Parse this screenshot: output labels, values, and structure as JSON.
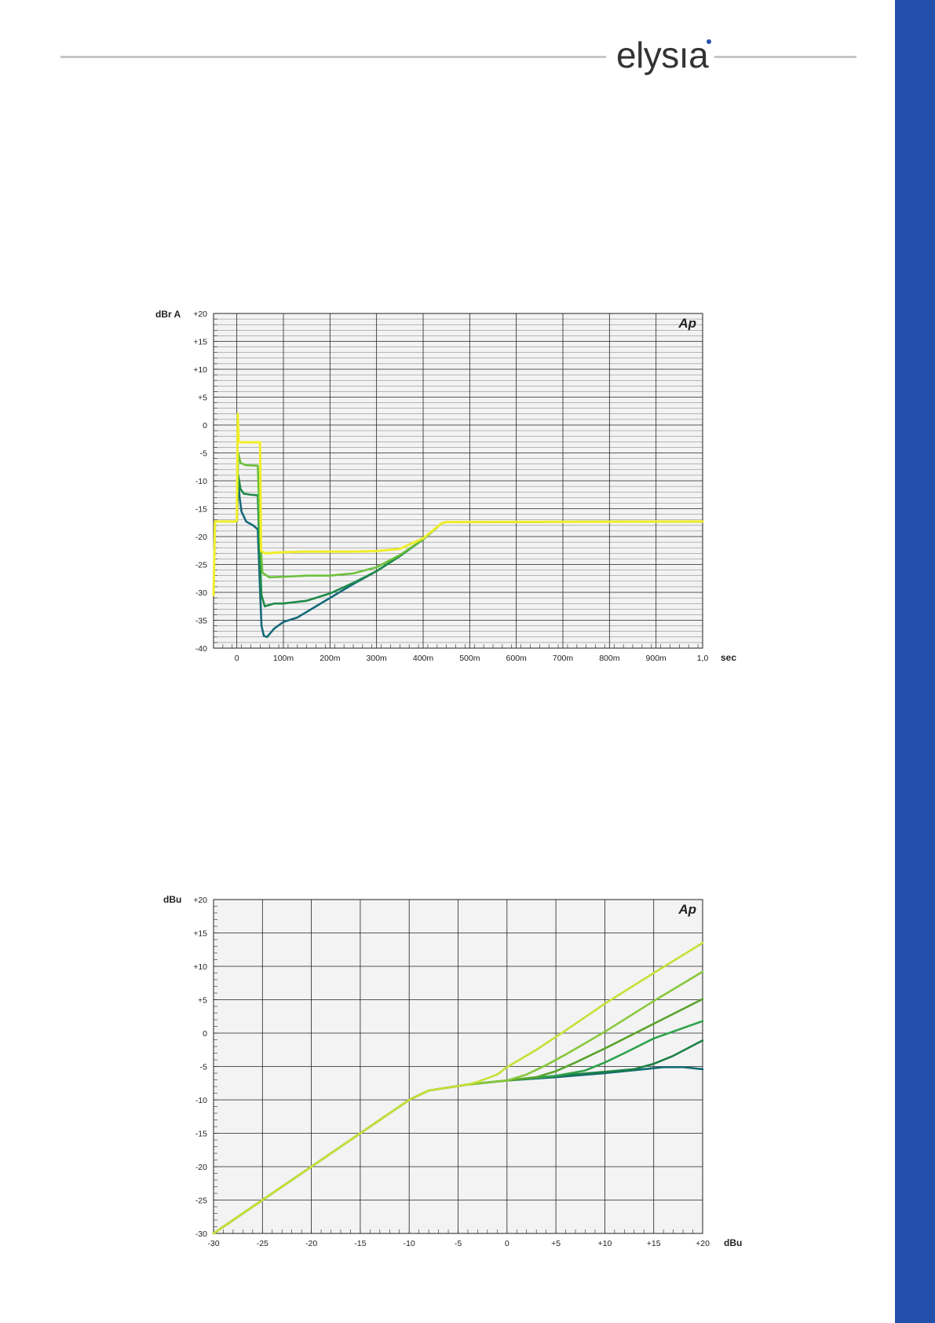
{
  "header": {
    "logo_text": "elysıa"
  },
  "colors": {
    "brand_blue": "#2350ab",
    "rule_gray": "#c6c6c6"
  },
  "chart_data": [
    {
      "type": "line",
      "logo": "Ap",
      "ylabel": "dBr A",
      "xlabel": "sec",
      "xlim": [
        -0.05,
        1.0
      ],
      "ylim": [
        -40,
        20
      ],
      "x_ticks": [
        0,
        0.1,
        0.2,
        0.3,
        0.4,
        0.5,
        0.6,
        0.7,
        0.8,
        0.9,
        1.0
      ],
      "x_tick_labels": [
        "0",
        "100m",
        "200m",
        "300m",
        "400m",
        "500m",
        "600m",
        "700m",
        "800m",
        "900m",
        "1,0"
      ],
      "y_ticks": [
        20,
        15,
        10,
        5,
        0,
        -5,
        -10,
        -15,
        -20,
        -25,
        -30,
        -35,
        -40
      ],
      "y_tick_labels": [
        "+20",
        "+15",
        "+10",
        "+5",
        "0",
        "-5",
        "-10",
        "-15",
        "-20",
        "-25",
        "-30",
        "-35",
        "-40"
      ],
      "grid": true,
      "background": "#f3f3f3",
      "series": [
        {
          "color": "#156a7a",
          "points": [
            [
              0,
              -17.3
            ],
            [
              0.003,
              -10
            ],
            [
              0.006,
              -13
            ],
            [
              0.01,
              -15.5
            ],
            [
              0.02,
              -17.3
            ],
            [
              0.035,
              -18
            ],
            [
              0.045,
              -18.7
            ],
            [
              0.05,
              -30
            ],
            [
              0.053,
              -36
            ],
            [
              0.058,
              -37.8
            ],
            [
              0.065,
              -38
            ],
            [
              0.08,
              -36.5
            ],
            [
              0.1,
              -35.3
            ],
            [
              0.13,
              -34.5
            ],
            [
              0.2,
              -31
            ],
            [
              0.25,
              -28.5
            ],
            [
              0.3,
              -26.2
            ],
            [
              0.35,
              -23.5
            ],
            [
              0.4,
              -20.5
            ],
            [
              0.44,
              -17.6
            ],
            [
              0.45,
              -17.4
            ],
            [
              1.0,
              -17.3
            ]
          ]
        },
        {
          "color": "#1f8a4a",
          "points": [
            [
              0,
              -17.3
            ],
            [
              0.003,
              -9
            ],
            [
              0.008,
              -11.5
            ],
            [
              0.015,
              -12.3
            ],
            [
              0.03,
              -12.5
            ],
            [
              0.045,
              -12.6
            ],
            [
              0.05,
              -25
            ],
            [
              0.053,
              -30.5
            ],
            [
              0.06,
              -32.5
            ],
            [
              0.08,
              -32
            ],
            [
              0.1,
              -32
            ],
            [
              0.15,
              -31.5
            ],
            [
              0.2,
              -30.2
            ],
            [
              0.25,
              -28.3
            ],
            [
              0.3,
              -26.2
            ],
            [
              0.35,
              -23.5
            ],
            [
              0.4,
              -20.5
            ],
            [
              0.44,
              -17.6
            ],
            [
              0.45,
              -17.4
            ],
            [
              1.0,
              -17.3
            ]
          ]
        },
        {
          "color": "#6cc13a",
          "points": [
            [
              0,
              -17.3
            ],
            [
              0.003,
              -5
            ],
            [
              0.008,
              -6.8
            ],
            [
              0.02,
              -7.2
            ],
            [
              0.045,
              -7.3
            ],
            [
              0.05,
              -20
            ],
            [
              0.055,
              -26.5
            ],
            [
              0.07,
              -27.3
            ],
            [
              0.1,
              -27.2
            ],
            [
              0.15,
              -27
            ],
            [
              0.2,
              -27
            ],
            [
              0.25,
              -26.6
            ],
            [
              0.3,
              -25.5
            ],
            [
              0.35,
              -23.3
            ],
            [
              0.4,
              -20.5
            ],
            [
              0.44,
              -17.6
            ],
            [
              0.45,
              -17.4
            ],
            [
              1.0,
              -17.3
            ]
          ]
        },
        {
          "color": "#f0ee2a",
          "points": [
            [
              -0.05,
              -30.5
            ],
            [
              -0.047,
              -17.3
            ],
            [
              -0.002,
              -17.3
            ],
            [
              0,
              -17
            ],
            [
              0.002,
              2
            ],
            [
              0.004,
              -3
            ],
            [
              0.01,
              -3.1
            ],
            [
              0.05,
              -3.1
            ],
            [
              0.052,
              -22.5
            ],
            [
              0.06,
              -23
            ],
            [
              0.1,
              -22.8
            ],
            [
              0.15,
              -22.7
            ],
            [
              0.2,
              -22.7
            ],
            [
              0.25,
              -22.7
            ],
            [
              0.3,
              -22.6
            ],
            [
              0.35,
              -22.2
            ],
            [
              0.4,
              -20.3
            ],
            [
              0.44,
              -17.6
            ],
            [
              0.45,
              -17.4
            ],
            [
              1.0,
              -17.3
            ]
          ]
        }
      ]
    },
    {
      "type": "line",
      "logo": "Ap",
      "ylabel": "dBu",
      "xlabel": "dBu",
      "xlim": [
        -30,
        20
      ],
      "ylim": [
        -30,
        20
      ],
      "x_ticks": [
        -30,
        -25,
        -20,
        -15,
        -10,
        -5,
        0,
        5,
        10,
        15,
        20
      ],
      "x_tick_labels": [
        "-30",
        "-25",
        "-20",
        "-15",
        "-10",
        "-5",
        "0",
        "+5",
        "+10",
        "+15",
        "+20"
      ],
      "y_ticks": [
        20,
        15,
        10,
        5,
        0,
        -5,
        -10,
        -15,
        -20,
        -25,
        -30
      ],
      "y_tick_labels": [
        "+20",
        "+15",
        "+10",
        "+5",
        "0",
        "-5",
        "-10",
        "-15",
        "-20",
        "-25",
        "-30"
      ],
      "grid": true,
      "background": "#f3f3f3",
      "series": [
        {
          "color": "#136b73",
          "points": [
            [
              -30,
              -30
            ],
            [
              -10,
              -10
            ],
            [
              -8,
              -8.6
            ],
            [
              -4,
              -7.7
            ],
            [
              0,
              -7.1
            ],
            [
              5,
              -6.6
            ],
            [
              10,
              -6
            ],
            [
              14,
              -5.4
            ],
            [
              16,
              -5.1
            ],
            [
              18,
              -5.1
            ],
            [
              20,
              -5.4
            ]
          ]
        },
        {
          "color": "#1b8044",
          "points": [
            [
              -30,
              -30
            ],
            [
              -10,
              -10
            ],
            [
              -8,
              -8.6
            ],
            [
              -4,
              -7.7
            ],
            [
              0,
              -7.1
            ],
            [
              5,
              -6.4
            ],
            [
              10,
              -5.8
            ],
            [
              13,
              -5.4
            ],
            [
              15,
              -4.6
            ],
            [
              17,
              -3.4
            ],
            [
              20,
              -1.1
            ]
          ]
        },
        {
          "color": "#2ea24a",
          "points": [
            [
              -30,
              -30
            ],
            [
              -10,
              -10
            ],
            [
              -8,
              -8.6
            ],
            [
              -4,
              -7.7
            ],
            [
              0,
              -7.1
            ],
            [
              5,
              -6.4
            ],
            [
              8,
              -5.6
            ],
            [
              10,
              -4.4
            ],
            [
              12,
              -3
            ],
            [
              15,
              -0.8
            ],
            [
              20,
              1.8
            ]
          ]
        },
        {
          "color": "#59a32c",
          "points": [
            [
              -30,
              -30
            ],
            [
              -10,
              -10
            ],
            [
              -8,
              -8.6
            ],
            [
              -4,
              -7.7
            ],
            [
              0,
              -7.1
            ],
            [
              3,
              -6.6
            ],
            [
              5,
              -5.7
            ],
            [
              7,
              -4.4
            ],
            [
              10,
              -2.3
            ],
            [
              15,
              1.4
            ],
            [
              20,
              5.1
            ]
          ]
        },
        {
          "color": "#88c83c",
          "points": [
            [
              -30,
              -30
            ],
            [
              -10,
              -10
            ],
            [
              -8,
              -8.6
            ],
            [
              -4,
              -7.7
            ],
            [
              0,
              -7.1
            ],
            [
              2,
              -6.2
            ],
            [
              4,
              -4.8
            ],
            [
              6,
              -3.2
            ],
            [
              10,
              0.2
            ],
            [
              15,
              4.8
            ],
            [
              20,
              9.2
            ]
          ]
        },
        {
          "color": "#c7e035",
          "points": [
            [
              -30,
              -30
            ],
            [
              -10,
              -10
            ],
            [
              -8,
              -8.6
            ],
            [
              -4,
              -7.7
            ],
            [
              -3,
              -7.3
            ],
            [
              -1,
              -6.2
            ],
            [
              0,
              -5.1
            ],
            [
              3,
              -2.5
            ],
            [
              6,
              0.4
            ],
            [
              10,
              4.4
            ],
            [
              15,
              9
            ],
            [
              20,
              13.5
            ]
          ]
        }
      ]
    }
  ]
}
